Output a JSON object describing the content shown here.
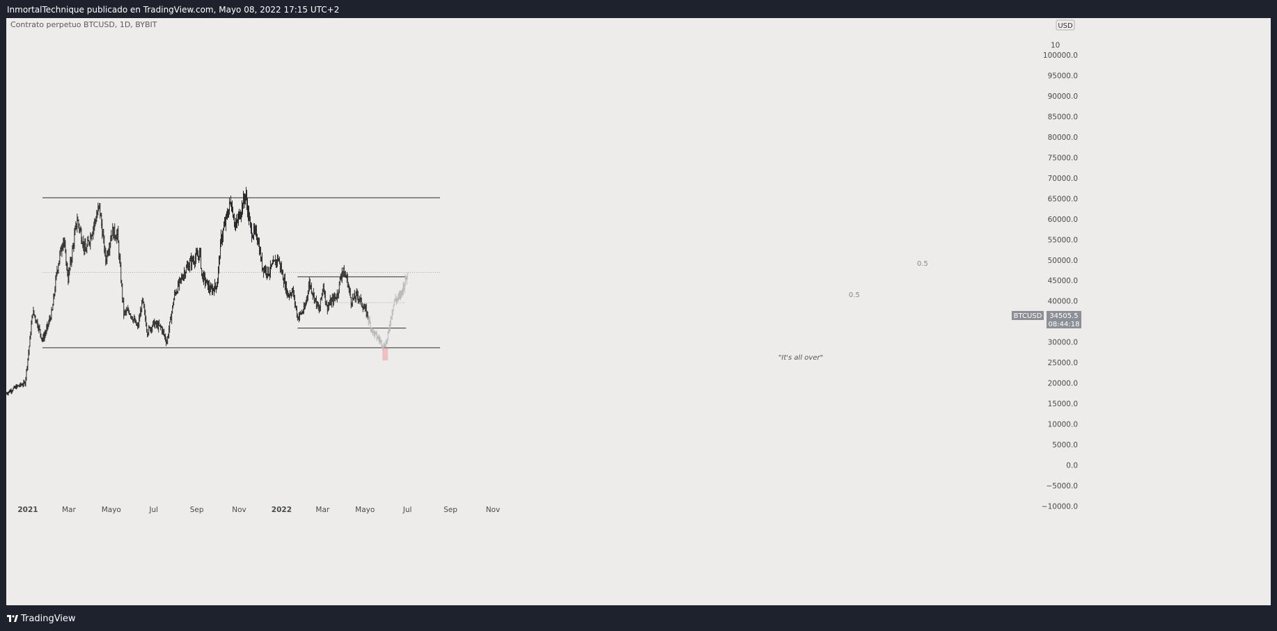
{
  "header": {
    "text": "InmortalTechnique publicado en TradingView.com, Mayo 08, 2022 17:15 UTC+2"
  },
  "footer": {
    "brand": "TradingView"
  },
  "chart": {
    "symbol_title": "Contrato perpetuo BTCUSD, 1D, BYBIT",
    "currency": "USD",
    "price_label": {
      "symbol": "BTCUSD",
      "price": "34505.5",
      "countdown": "08:44:18"
    },
    "annotation": "\"It's all over\"",
    "fib_labels": [
      "0.5",
      "0.5"
    ],
    "colors": {
      "background": "#edeceb",
      "frame": "#1e222d",
      "bars": "#2a2a2a",
      "projection": "#b7b7b7",
      "price_tag": "#8d8f97",
      "highlight": "#f0b4b8"
    }
  },
  "chart_data": {
    "type": "ohlc",
    "title": "Contrato perpetuo BTCUSD, 1D, BYBIT",
    "x_axis": {
      "tick_labels": [
        "2021",
        "Mar",
        "Mayo",
        "Jul",
        "Sep",
        "Nov",
        "2022",
        "Mar",
        "Mayo",
        "Jul",
        "Sep",
        "Nov"
      ]
    },
    "y_axis": {
      "ylim": [
        -12500,
        107500
      ],
      "tick_labels": [
        "100000.0",
        "95000.0",
        "90000.0",
        "85000.0",
        "80000.0",
        "75000.0",
        "70000.0",
        "65000.0",
        "60000.0",
        "55000.0",
        "50000.0",
        "45000.0",
        "40000.0",
        "35000.0",
        "30000.0",
        "25000.0",
        "20000.0",
        "15000.0",
        "10000.0",
        "5000.0",
        "0.0",
        "−5000.0",
        "−10000.0"
      ],
      "top_partial_label": "10",
      "side": "right"
    },
    "grid": false,
    "series": [
      {
        "name": "BTCUSD",
        "anchors": [
          [
            "2020-12-01",
            17500
          ],
          [
            "2020-12-15",
            19000
          ],
          [
            "2020-12-28",
            20000
          ],
          [
            "2021-01-03",
            29000
          ],
          [
            "2021-01-08",
            37500
          ],
          [
            "2021-01-14",
            35000
          ],
          [
            "2021-01-22",
            30500
          ],
          [
            "2021-01-28",
            33000
          ],
          [
            "2021-02-05",
            37500
          ],
          [
            "2021-02-12",
            47500
          ],
          [
            "2021-02-21",
            55500
          ],
          [
            "2021-02-28",
            45500
          ],
          [
            "2021-03-13",
            60000
          ],
          [
            "2021-03-25",
            52000
          ],
          [
            "2021-04-05",
            58000
          ],
          [
            "2021-04-14",
            63000
          ],
          [
            "2021-04-23",
            50000
          ],
          [
            "2021-05-02",
            57000
          ],
          [
            "2021-05-10",
            56000
          ],
          [
            "2021-05-19",
            37000
          ],
          [
            "2021-05-27",
            37500
          ],
          [
            "2021-06-08",
            33500
          ],
          [
            "2021-06-15",
            40000
          ],
          [
            "2021-06-22",
            32500
          ],
          [
            "2021-07-01",
            34500
          ],
          [
            "2021-07-12",
            33500
          ],
          [
            "2021-07-20",
            30000
          ],
          [
            "2021-07-31",
            41500
          ],
          [
            "2021-08-14",
            47000
          ],
          [
            "2021-08-23",
            49500
          ],
          [
            "2021-09-06",
            51500
          ],
          [
            "2021-09-08",
            46500
          ],
          [
            "2021-09-21",
            42500
          ],
          [
            "2021-09-30",
            44000
          ],
          [
            "2021-10-06",
            55000
          ],
          [
            "2021-10-20",
            64500
          ],
          [
            "2021-10-27",
            58000
          ],
          [
            "2021-11-10",
            66000
          ],
          [
            "2021-11-18",
            57000
          ],
          [
            "2021-11-27",
            56000
          ],
          [
            "2021-12-04",
            48500
          ],
          [
            "2021-12-13",
            47000
          ],
          [
            "2021-12-27",
            50500
          ],
          [
            "2022-01-03",
            46000
          ],
          [
            "2022-01-10",
            41500
          ],
          [
            "2022-01-17",
            42500
          ],
          [
            "2022-01-24",
            36000
          ],
          [
            "2022-02-03",
            38000
          ],
          [
            "2022-02-10",
            44500
          ],
          [
            "2022-02-24",
            37500
          ],
          [
            "2022-03-02",
            44000
          ],
          [
            "2022-03-07",
            38500
          ],
          [
            "2022-03-22",
            41500
          ],
          [
            "2022-03-29",
            47500
          ],
          [
            "2022-04-05",
            45500
          ],
          [
            "2022-04-11",
            40000
          ],
          [
            "2022-04-20",
            41500
          ],
          [
            "2022-05-05",
            36500
          ]
        ],
        "projection": [
          [
            "2022-05-06",
            35500
          ],
          [
            "2022-05-12",
            32500
          ],
          [
            "2022-05-22",
            30500
          ],
          [
            "2022-05-28",
            29000
          ],
          [
            "2022-06-02",
            30500
          ],
          [
            "2022-06-07",
            36000
          ],
          [
            "2022-06-12",
            40000
          ],
          [
            "2022-06-20",
            41000
          ],
          [
            "2022-06-28",
            45000
          ],
          [
            "2022-07-01",
            46500
          ]
        ]
      }
    ],
    "horizontal_lines": [
      {
        "y": 65200,
        "from": "2021-01-22",
        "to": "2022-08-17",
        "style": "solid"
      },
      {
        "y": 28600,
        "from": "2021-01-22",
        "to": "2022-08-17",
        "style": "solid"
      },
      {
        "y": 47000,
        "from": "2021-01-22",
        "to": "2022-08-17",
        "style": "dotted",
        "label": "0.5"
      },
      {
        "y": 45900,
        "from": "2022-01-24",
        "to": "2022-06-29",
        "style": "solid"
      },
      {
        "y": 33400,
        "from": "2022-01-24",
        "to": "2022-06-29",
        "style": "solid"
      },
      {
        "y": 39600,
        "from": "2022-01-24",
        "to": "2022-06-29",
        "style": "dotted",
        "label": "0.5"
      }
    ],
    "highlight_box": {
      "from": "2022-05-26",
      "to": "2022-06-03",
      "y_range": [
        25500,
        28500
      ]
    },
    "annotations": [
      {
        "text": "\"It's all over\"",
        "x": "2022-05-30",
        "y": 21500
      }
    ],
    "last_price": 34505.5
  }
}
